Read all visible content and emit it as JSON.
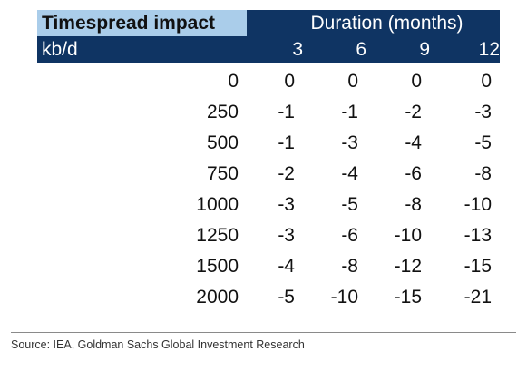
{
  "table": {
    "title": "Timespread impact",
    "duration_header": "Duration (months)",
    "row_header": "kb/d",
    "columns": [
      "3",
      "6",
      "9",
      "12"
    ],
    "rows": [
      {
        "kbd": "0",
        "values": [
          "0",
          "0",
          "0",
          "0"
        ]
      },
      {
        "kbd": "250",
        "values": [
          "-1",
          "-1",
          "-2",
          "-3"
        ]
      },
      {
        "kbd": "500",
        "values": [
          "-1",
          "-3",
          "-4",
          "-5"
        ]
      },
      {
        "kbd": "750",
        "values": [
          "-2",
          "-4",
          "-6",
          "-8"
        ]
      },
      {
        "kbd": "1000",
        "values": [
          "-3",
          "-5",
          "-8",
          "-10"
        ]
      },
      {
        "kbd": "1250",
        "values": [
          "-3",
          "-6",
          "-10",
          "-13"
        ]
      },
      {
        "kbd": "1500",
        "values": [
          "-4",
          "-8",
          "-12",
          "-15"
        ]
      },
      {
        "kbd": "2000",
        "values": [
          "-5",
          "-10",
          "-15",
          "-21"
        ]
      }
    ]
  },
  "source": "Source: IEA, Goldman Sachs Global Investment Research",
  "colors": {
    "header_navy": "#0f3463",
    "title_light_blue": "#aacdea"
  },
  "chart_data": {
    "type": "table",
    "title": "Timespread impact",
    "xlabel": "Duration (months)",
    "ylabel": "kb/d",
    "categories": [
      "3",
      "6",
      "9",
      "12"
    ],
    "x": [
      0,
      250,
      500,
      750,
      1000,
      1250,
      1500,
      2000
    ],
    "series": [
      {
        "name": "3",
        "values": [
          0,
          -1,
          -1,
          -2,
          -3,
          -3,
          -4,
          -5
        ]
      },
      {
        "name": "6",
        "values": [
          0,
          -1,
          -3,
          -4,
          -5,
          -6,
          -8,
          -10
        ]
      },
      {
        "name": "9",
        "values": [
          0,
          -2,
          -4,
          -6,
          -8,
          -10,
          -12,
          -15
        ]
      },
      {
        "name": "12",
        "values": [
          0,
          -3,
          -5,
          -8,
          -10,
          -13,
          -15,
          -21
        ]
      }
    ]
  }
}
